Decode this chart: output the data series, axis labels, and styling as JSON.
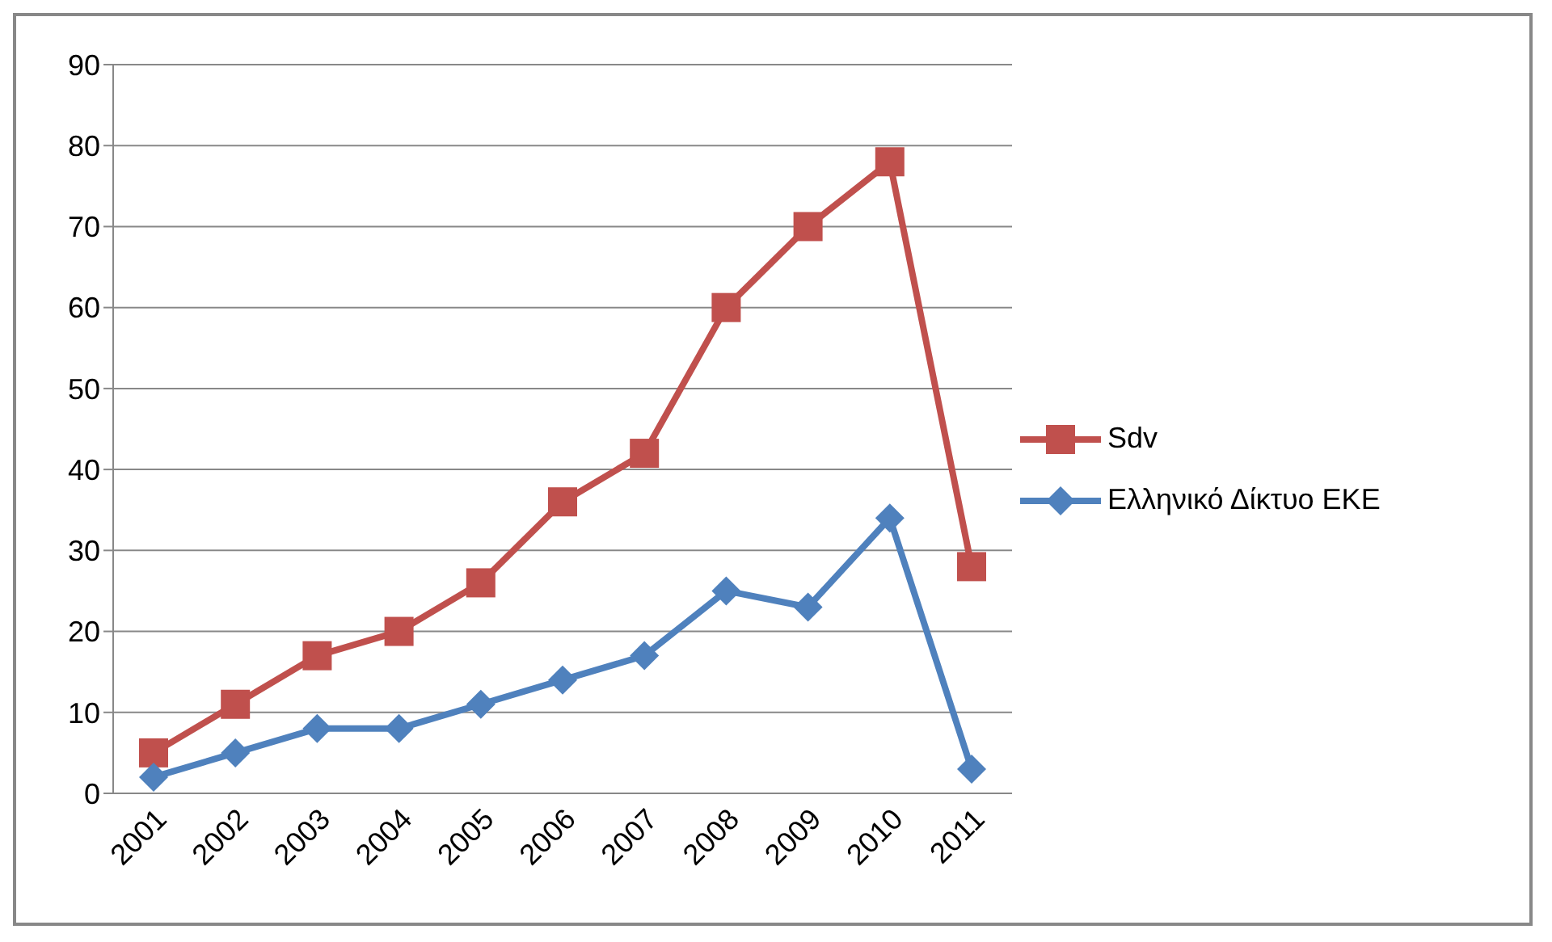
{
  "chart_data": {
    "type": "line",
    "categories": [
      "2001",
      "2002",
      "2003",
      "2004",
      "2005",
      "2006",
      "2007",
      "2008",
      "2009",
      "2010",
      "2011"
    ],
    "series": [
      {
        "name": "Sdv",
        "color": "#c0504d",
        "marker": "square",
        "values": [
          5,
          11,
          17,
          20,
          26,
          36,
          42,
          60,
          70,
          78,
          28
        ]
      },
      {
        "name": "Ελληνικό Δίκτυο ΕΚΕ",
        "color": "#4f81bd",
        "marker": "diamond",
        "values": [
          2,
          5,
          8,
          8,
          11,
          14,
          17,
          25,
          23,
          34,
          3
        ]
      }
    ],
    "ylim": [
      0,
      90
    ],
    "yticks": [
      0,
      10,
      20,
      30,
      40,
      50,
      60,
      70,
      80,
      90
    ],
    "grid": "y",
    "legend": "right",
    "line_style": "solid"
  }
}
